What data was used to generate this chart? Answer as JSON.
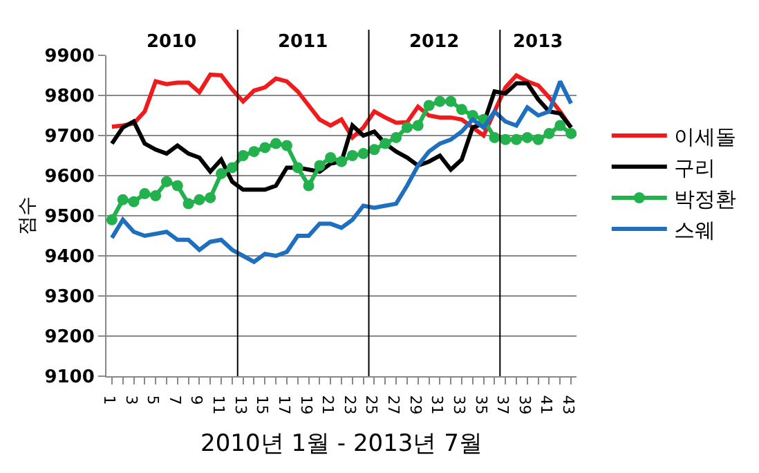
{
  "chart_data": {
    "type": "line",
    "xlabel": "2010년 1월 - 2013년 7월",
    "ylabel": "점수",
    "annotations": [
      "2010",
      "2011",
      "2012",
      "2013"
    ],
    "x": [
      1,
      2,
      3,
      4,
      5,
      6,
      7,
      8,
      9,
      10,
      11,
      12,
      13,
      14,
      15,
      16,
      17,
      18,
      19,
      20,
      21,
      22,
      23,
      24,
      25,
      26,
      27,
      28,
      29,
      30,
      31,
      32,
      33,
      34,
      35,
      36,
      37,
      38,
      39,
      40,
      41,
      42,
      43
    ],
    "xlim": [
      0.5,
      43.5
    ],
    "xticks": [
      1,
      {
        "value": 2,
        "label": null
      },
      3,
      {
        "value": 4,
        "label": null
      },
      5,
      {
        "value": 6,
        "label": null
      },
      7,
      {
        "value": 8,
        "label": null
      },
      9,
      {
        "value": 10,
        "label": null
      },
      11,
      {
        "value": 12,
        "label": null
      },
      13,
      {
        "value": 14,
        "label": null
      },
      15,
      {
        "value": 16,
        "label": null
      },
      17,
      {
        "value": 18,
        "label": null
      },
      19,
      {
        "value": 20,
        "label": null
      },
      21,
      {
        "value": 22,
        "label": null
      },
      23,
      {
        "value": 24,
        "label": null
      },
      25,
      {
        "value": 26,
        "label": null
      },
      27,
      {
        "value": 28,
        "label": null
      },
      29,
      {
        "value": 30,
        "label": null
      },
      31,
      {
        "value": 32,
        "label": null
      },
      33,
      {
        "value": 34,
        "label": null
      },
      35,
      {
        "value": 36,
        "label": null
      },
      37,
      {
        "value": 38,
        "label": null
      },
      39,
      {
        "value": 40,
        "label": null
      },
      41,
      {
        "value": 42,
        "label": null
      },
      43
    ],
    "ylim": [
      9100,
      9900
    ],
    "yticks": [
      9100,
      9200,
      9300,
      9400,
      9500,
      9600,
      9700,
      9800,
      9900
    ],
    "grid": "y",
    "legend": "right",
    "ref_lines": [
      {
        "axis": "x",
        "value": 12.5,
        "color": "#000000"
      },
      {
        "axis": "x",
        "value": 24.5,
        "color": "#000000"
      },
      {
        "axis": "x",
        "value": 36.5,
        "color": "#000000"
      }
    ],
    "series": [
      {
        "name": "이세돌",
        "color": "#ee1c1c",
        "marker": "none",
        "values": [
          9722,
          9725,
          9730,
          9760,
          9835,
          9828,
          9832,
          9832,
          9808,
          9852,
          9850,
          9815,
          9785,
          9812,
          9820,
          9842,
          9835,
          9810,
          9775,
          9740,
          9725,
          9740,
          9695,
          9720,
          9760,
          9745,
          9732,
          9733,
          9772,
          9750,
          9745,
          9745,
          9740,
          9720,
          9700,
          9760,
          9820,
          9850,
          9835,
          9825,
          9795,
          9760,
          9720
        ]
      },
      {
        "name": "구리",
        "color": "#000000",
        "marker": "none",
        "values": [
          9680,
          9720,
          9735,
          9680,
          9665,
          9655,
          9675,
          9655,
          9645,
          9610,
          9640,
          9585,
          9565,
          9565,
          9565,
          9575,
          9620,
          9620,
          9615,
          9610,
          9630,
          9635,
          9725,
          9700,
          9710,
          9680,
          9660,
          9645,
          9625,
          9635,
          9650,
          9615,
          9640,
          9720,
          9730,
          9810,
          9805,
          9830,
          9830,
          9790,
          9760,
          9755,
          9720
        ]
      },
      {
        "name": "박정환",
        "color": "#22b14c",
        "marker": "circle",
        "values": [
          9490,
          9540,
          9535,
          9555,
          9550,
          9585,
          9575,
          9530,
          9540,
          9545,
          9605,
          9620,
          9650,
          9660,
          9670,
          9680,
          9675,
          9620,
          9575,
          9625,
          9645,
          9635,
          9650,
          9655,
          9665,
          9680,
          9695,
          9720,
          9725,
          9775,
          9785,
          9785,
          9765,
          9750,
          9740,
          9695,
          9690,
          9690,
          9695,
          9690,
          9705,
          9725,
          9705
        ]
      },
      {
        "name": "스웨",
        "color": "#1f6fbf",
        "marker": "none",
        "values": [
          9445,
          9490,
          9460,
          9450,
          9455,
          9460,
          9440,
          9440,
          9415,
          9435,
          9440,
          9415,
          9400,
          9385,
          9405,
          9400,
          9410,
          9450,
          9450,
          9480,
          9480,
          9470,
          9490,
          9525,
          9520,
          9525,
          9530,
          9575,
          9625,
          9660,
          9680,
          9690,
          9710,
          9740,
          9720,
          9760,
          9735,
          9725,
          9770,
          9750,
          9760,
          9835,
          9780
        ]
      }
    ]
  }
}
